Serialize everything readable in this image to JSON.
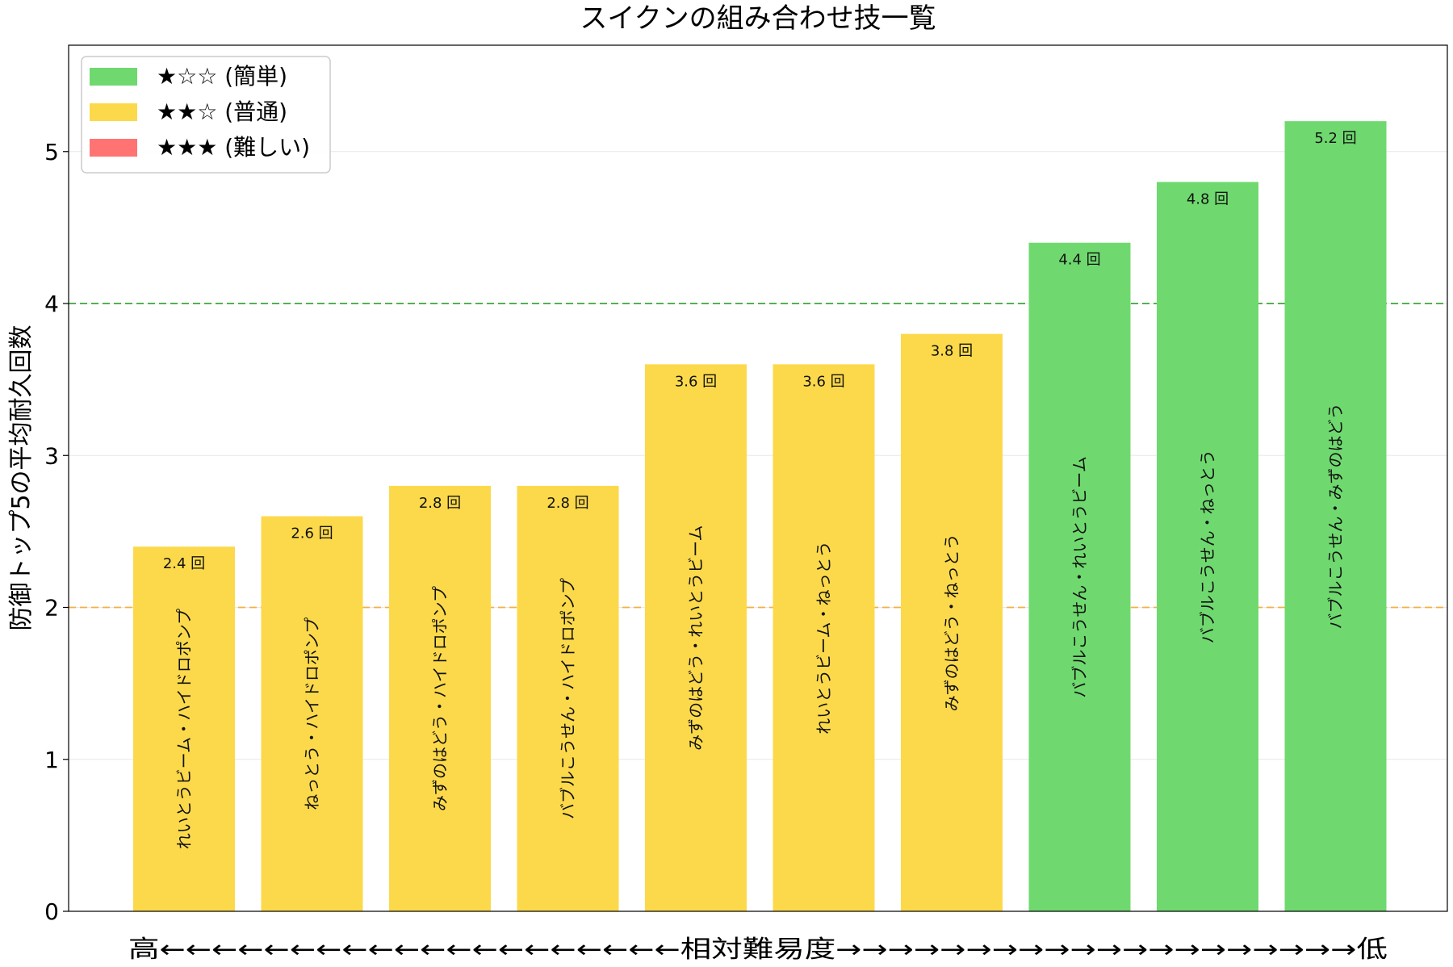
{
  "chart_data": {
    "type": "bar",
    "title": "スイクンの組み合わせ技一覧",
    "xlabel": "高←←←←←←←←←←←←←←←←←←←←相対難易度→→→→→→→→→→→→→→→→→→→→低",
    "ylabel": "防御トップ5の平均耐久回数",
    "ylim": [
      0,
      5.7
    ],
    "yticks": [
      0,
      1,
      2,
      3,
      4,
      5
    ],
    "grid": "horizontal",
    "categories": [
      "れいとうビーム・ハイドロポンプ",
      "ねっとう・ハイドロポンプ",
      "みずのはどう・ハイドロポンプ",
      "バブルこうせん・ハイドロポンプ",
      "みずのはどう・れいとうビーム",
      "れいとうビーム・ねっとう",
      "みずのはどう・ねっとう",
      "バブルこうせん・れいとうビーム",
      "バブルこうせん・ねっとう",
      "バブルこうせん・みずのはどう"
    ],
    "values": [
      2.4,
      2.6,
      2.8,
      2.8,
      3.6,
      3.6,
      3.8,
      4.4,
      4.8,
      5.2
    ],
    "value_labels": [
      "2.4 回",
      "2.6 回",
      "2.8 回",
      "2.8 回",
      "3.6 回",
      "3.6 回",
      "3.8 回",
      "4.4 回",
      "4.8 回",
      "5.2 回"
    ],
    "difficulty": [
      "普通",
      "普通",
      "普通",
      "普通",
      "普通",
      "普通",
      "普通",
      "簡単",
      "簡単",
      "簡単"
    ],
    "reference_lines": [
      {
        "y": 4,
        "color": "#3aa63a",
        "style": "dashed"
      },
      {
        "y": 2,
        "color": "#f5b041",
        "style": "dashed"
      }
    ],
    "legend": {
      "position": "top-left",
      "entries": [
        {
          "label": "★☆☆ (簡単)",
          "key": "簡単",
          "color": "#6fd96f"
        },
        {
          "label": "★★☆ (普通)",
          "key": "普通",
          "color": "#fcd94b"
        },
        {
          "label": "★★★ (難しい)",
          "key": "難しい",
          "color": "#ff7373"
        }
      ]
    }
  }
}
